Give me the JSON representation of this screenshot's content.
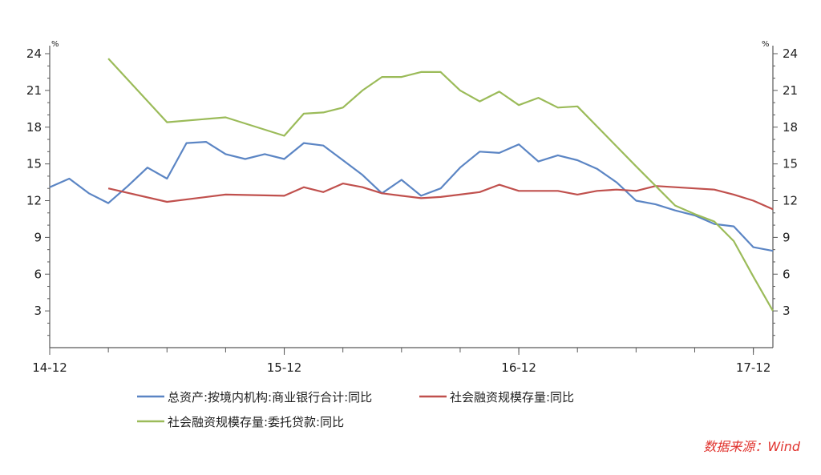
{
  "chart_data": {
    "type": "line",
    "x_tick_labels": [
      "14-12",
      "15-12",
      "16-12",
      "17-12"
    ],
    "x_tick_months": [
      0,
      12,
      24,
      36
    ],
    "x_range_months": [
      0,
      37
    ],
    "y_left": {
      "unit": "%",
      "ylim": [
        0,
        24
      ],
      "ticks": [
        3,
        6,
        9,
        12,
        15,
        18,
        21,
        24
      ]
    },
    "y_right": {
      "unit": "%",
      "ylim": [
        0,
        24
      ],
      "ticks": [
        3,
        6,
        9,
        12,
        15,
        18,
        21,
        24
      ]
    },
    "grid": false,
    "legend_position": "bottom",
    "series": [
      {
        "name": "总资产:按境内机构:商业银行合计:同比",
        "color": "#5b85c4",
        "axis": "left",
        "points": [
          [
            0,
            13.1
          ],
          [
            1,
            13.8
          ],
          [
            2,
            12.6
          ],
          [
            3,
            11.8
          ],
          [
            4,
            13.2
          ],
          [
            5,
            14.7
          ],
          [
            6,
            13.8
          ],
          [
            7,
            16.7
          ],
          [
            8,
            16.8
          ],
          [
            9,
            15.8
          ],
          [
            10,
            15.4
          ],
          [
            11,
            15.8
          ],
          [
            12,
            15.4
          ],
          [
            13,
            16.7
          ],
          [
            14,
            16.5
          ],
          [
            15,
            15.3
          ],
          [
            16,
            14.1
          ],
          [
            17,
            12.6
          ],
          [
            18,
            13.7
          ],
          [
            19,
            12.4
          ],
          [
            20,
            13.0
          ],
          [
            21,
            14.7
          ],
          [
            22,
            16.0
          ],
          [
            23,
            15.9
          ],
          [
            24,
            16.6
          ],
          [
            25,
            15.2
          ],
          [
            26,
            15.7
          ],
          [
            27,
            15.3
          ],
          [
            28,
            14.6
          ],
          [
            29,
            13.5
          ],
          [
            30,
            12.0
          ],
          [
            31,
            11.7
          ],
          [
            32,
            11.2
          ],
          [
            33,
            10.8
          ],
          [
            34,
            10.1
          ],
          [
            35,
            9.9
          ],
          [
            36,
            8.2
          ],
          [
            37,
            7.9
          ]
        ]
      },
      {
        "name": "社会融资规模存量:同比",
        "color": "#c0504d",
        "axis": "left",
        "points": [
          [
            3,
            13.0
          ],
          [
            6,
            11.9
          ],
          [
            9,
            12.5
          ],
          [
            12,
            12.4
          ],
          [
            13,
            13.1
          ],
          [
            14,
            12.7
          ],
          [
            15,
            13.4
          ],
          [
            16,
            13.1
          ],
          [
            17,
            12.6
          ],
          [
            18,
            12.4
          ],
          [
            19,
            12.2
          ],
          [
            20,
            12.3
          ],
          [
            21,
            12.5
          ],
          [
            22,
            12.7
          ],
          [
            23,
            13.3
          ],
          [
            24,
            12.8
          ],
          [
            25,
            12.8
          ],
          [
            26,
            12.8
          ],
          [
            27,
            12.5
          ],
          [
            28,
            12.8
          ],
          [
            29,
            12.9
          ],
          [
            30,
            12.8
          ],
          [
            31,
            13.2
          ],
          [
            32,
            13.1
          ],
          [
            33,
            13.0
          ],
          [
            34,
            12.9
          ],
          [
            35,
            12.5
          ],
          [
            36,
            12.0
          ],
          [
            37,
            11.3
          ]
        ]
      },
      {
        "name": "社会融资规模存量:委托贷款:同比",
        "color": "#9bbb59",
        "axis": "right",
        "points": [
          [
            3,
            23.6
          ],
          [
            6,
            18.4
          ],
          [
            9,
            18.8
          ],
          [
            12,
            17.3
          ],
          [
            13,
            19.1
          ],
          [
            14,
            19.2
          ],
          [
            15,
            19.6
          ],
          [
            16,
            21.0
          ],
          [
            17,
            22.1
          ],
          [
            18,
            22.1
          ],
          [
            19,
            22.5
          ],
          [
            20,
            22.5
          ],
          [
            21,
            21.0
          ],
          [
            22,
            20.1
          ],
          [
            23,
            20.9
          ],
          [
            24,
            19.8
          ],
          [
            25,
            20.4
          ],
          [
            26,
            19.6
          ],
          [
            27,
            19.7
          ],
          [
            30,
            14.8
          ],
          [
            32,
            11.6
          ],
          [
            33,
            10.9
          ],
          [
            34,
            10.3
          ],
          [
            35,
            8.7
          ],
          [
            36,
            5.8
          ],
          [
            37,
            3.0
          ]
        ]
      }
    ]
  },
  "source_text": "数据来源：Wind"
}
